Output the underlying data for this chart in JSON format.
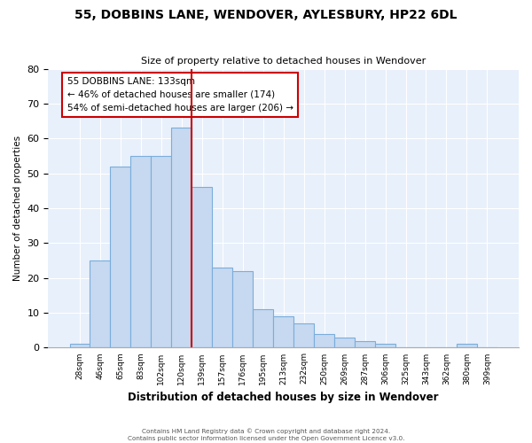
{
  "title": "55, DOBBINS LANE, WENDOVER, AYLESBURY, HP22 6DL",
  "subtitle": "Size of property relative to detached houses in Wendover",
  "xlabel": "Distribution of detached houses by size in Wendover",
  "ylabel": "Number of detached properties",
  "bar_labels": [
    "28sqm",
    "46sqm",
    "65sqm",
    "83sqm",
    "102sqm",
    "120sqm",
    "139sqm",
    "157sqm",
    "176sqm",
    "195sqm",
    "213sqm",
    "232sqm",
    "250sqm",
    "269sqm",
    "287sqm",
    "306sqm",
    "325sqm",
    "343sqm",
    "362sqm",
    "380sqm",
    "399sqm"
  ],
  "bar_values": [
    1,
    25,
    52,
    55,
    55,
    63,
    46,
    23,
    22,
    11,
    9,
    7,
    4,
    3,
    2,
    1,
    0,
    0,
    0,
    1,
    0
  ],
  "bar_color": "#c6d9f0",
  "bar_edge_color": "#7aaddb",
  "vline_index": 6,
  "vline_color": "#cc0000",
  "annotation_title": "55 DOBBINS LANE: 133sqm",
  "annotation_line1": "← 46% of detached houses are smaller (174)",
  "annotation_line2": "54% of semi-detached houses are larger (206) →",
  "annotation_box_color": "#ffffff",
  "annotation_box_edge": "#cc0000",
  "footer1": "Contains HM Land Registry data © Crown copyright and database right 2024.",
  "footer2": "Contains public sector information licensed under the Open Government Licence v3.0.",
  "ylim": [
    0,
    80
  ],
  "axes_bg_color": "#e8f0fb",
  "fig_bg_color": "#ffffff",
  "grid_color": "#ffffff"
}
